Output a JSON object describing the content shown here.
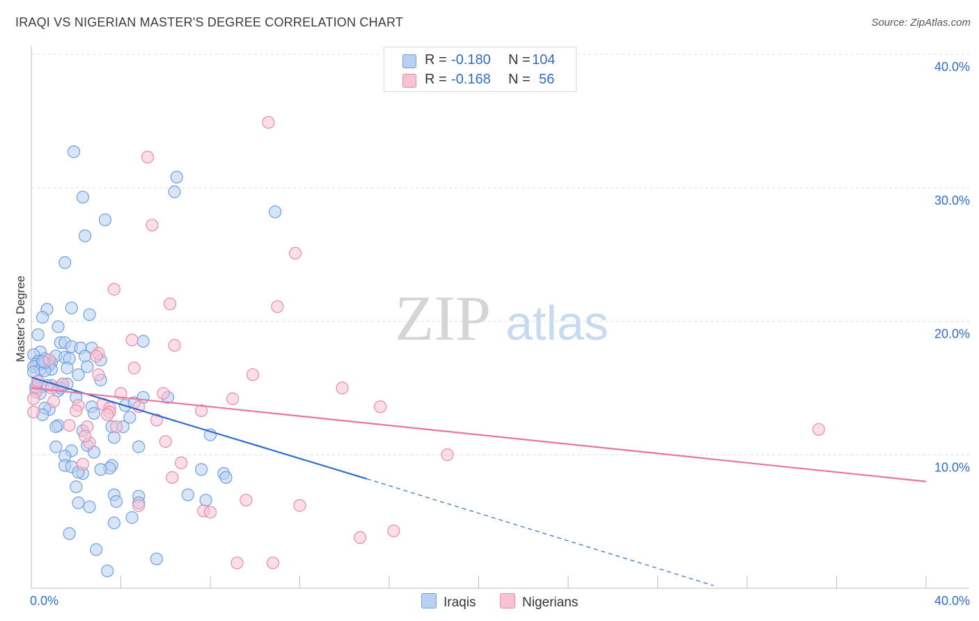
{
  "title": "IRAQI VS NIGERIAN MASTER'S DEGREE CORRELATION CHART",
  "source": "Source: ZipAtlas.com",
  "watermark": {
    "zip": "ZIP",
    "atlas": "atlas"
  },
  "legend": {
    "r_label": "R = ",
    "n_label": "N = ",
    "rows": [
      {
        "name": "Iraqis",
        "r": "-0.180",
        "n": "104",
        "color": "#6d9fe0",
        "fill": "#b8d0f2"
      },
      {
        "name": "Nigerians",
        "r": "-0.168",
        "n": "56",
        "color": "#e98aaa",
        "fill": "#f7c3d4"
      }
    ]
  },
  "chart_data": {
    "type": "scatter",
    "title": "IRAQI VS NIGERIAN MASTER'S DEGREE CORRELATION CHART",
    "xlabel": "",
    "ylabel": "Master's Degree",
    "xlim": [
      0,
      40
    ],
    "ylim": [
      0,
      40
    ],
    "x_tick_labels": [
      "0.0%",
      "40.0%"
    ],
    "y_tick_labels": [
      "10.0%",
      "20.0%",
      "30.0%",
      "40.0%"
    ],
    "y_ticks": [
      10,
      20,
      30,
      40
    ],
    "series": [
      {
        "name": "Iraqis",
        "color": "#6d9fe0",
        "fill": "#b8d0f2",
        "line_color": "#2f6cc8",
        "trend": {
          "x0": 0,
          "y0": 15.8,
          "x1": 15,
          "y1": 8.2,
          "dashed_to_x": 30.5,
          "dashed_to_y": 0.2
        },
        "points": [
          [
            1.9,
            32.7
          ],
          [
            6.5,
            30.8
          ],
          [
            2.3,
            29.3
          ],
          [
            6.4,
            29.7
          ],
          [
            10.9,
            28.2
          ],
          [
            3.3,
            27.6
          ],
          [
            2.4,
            26.4
          ],
          [
            1.5,
            24.4
          ],
          [
            0.7,
            20.9
          ],
          [
            1.8,
            21.0
          ],
          [
            0.5,
            20.3
          ],
          [
            2.6,
            20.5
          ],
          [
            1.2,
            19.6
          ],
          [
            0.3,
            19.0
          ],
          [
            5.0,
            18.5
          ],
          [
            1.3,
            18.4
          ],
          [
            1.5,
            18.4
          ],
          [
            1.8,
            18.1
          ],
          [
            2.2,
            18.0
          ],
          [
            2.7,
            18.0
          ],
          [
            0.4,
            17.7
          ],
          [
            0.1,
            17.5
          ],
          [
            1.1,
            17.4
          ],
          [
            1.5,
            17.3
          ],
          [
            2.4,
            17.4
          ],
          [
            1.7,
            17.2
          ],
          [
            0.6,
            17.2
          ],
          [
            0.3,
            17.0
          ],
          [
            0.9,
            16.9
          ],
          [
            3.1,
            17.1
          ],
          [
            0.2,
            16.8
          ],
          [
            0.5,
            16.8
          ],
          [
            0.8,
            16.7
          ],
          [
            0.1,
            16.6
          ],
          [
            0.4,
            16.4
          ],
          [
            1.6,
            16.5
          ],
          [
            2.5,
            16.6
          ],
          [
            0.9,
            16.4
          ],
          [
            0.6,
            16.3
          ],
          [
            0.1,
            16.2
          ],
          [
            2.1,
            16.0
          ],
          [
            0.3,
            15.5
          ],
          [
            1.4,
            15.3
          ],
          [
            0.9,
            15.2
          ],
          [
            0.5,
            15.1
          ],
          [
            1.6,
            15.3
          ],
          [
            0.2,
            14.9
          ],
          [
            1.2,
            14.8
          ],
          [
            0.4,
            14.6
          ],
          [
            2.0,
            14.3
          ],
          [
            5.0,
            14.3
          ],
          [
            6.1,
            14.3
          ],
          [
            4.2,
            13.7
          ],
          [
            2.7,
            13.6
          ],
          [
            0.8,
            13.4
          ],
          [
            0.6,
            13.5
          ],
          [
            0.5,
            13.0
          ],
          [
            4.4,
            12.8
          ],
          [
            1.2,
            12.2
          ],
          [
            1.1,
            12.1
          ],
          [
            3.6,
            12.1
          ],
          [
            4.1,
            12.1
          ],
          [
            2.3,
            11.8
          ],
          [
            8.0,
            11.5
          ],
          [
            3.7,
            11.3
          ],
          [
            1.1,
            10.6
          ],
          [
            2.5,
            10.7
          ],
          [
            4.8,
            10.6
          ],
          [
            2.8,
            10.2
          ],
          [
            1.8,
            10.3
          ],
          [
            1.5,
            9.9
          ],
          [
            3.6,
            9.2
          ],
          [
            1.5,
            9.2
          ],
          [
            1.8,
            9.1
          ],
          [
            3.5,
            9.0
          ],
          [
            7.6,
            8.9
          ],
          [
            3.1,
            8.9
          ],
          [
            2.3,
            8.6
          ],
          [
            2.1,
            8.7
          ],
          [
            8.6,
            8.6
          ],
          [
            8.7,
            8.3
          ],
          [
            2.0,
            7.6
          ],
          [
            3.7,
            7.0
          ],
          [
            4.8,
            6.9
          ],
          [
            7.0,
            7.0
          ],
          [
            7.8,
            6.6
          ],
          [
            3.8,
            6.5
          ],
          [
            4.8,
            6.4
          ],
          [
            2.1,
            6.4
          ],
          [
            2.6,
            6.1
          ],
          [
            4.5,
            5.3
          ],
          [
            3.7,
            4.9
          ],
          [
            1.7,
            4.1
          ],
          [
            2.9,
            2.9
          ],
          [
            5.6,
            2.2
          ],
          [
            3.4,
            1.3
          ],
          [
            0.6,
            16.9
          ],
          [
            0.7,
            15.2
          ],
          [
            1.3,
            15.0
          ],
          [
            0.2,
            15.1
          ],
          [
            3.1,
            15.6
          ],
          [
            2.8,
            13.1
          ],
          [
            4.6,
            13.9
          ],
          [
            0.5,
            17.0
          ]
        ]
      },
      {
        "name": "Nigerians",
        "color": "#e98aaa",
        "fill": "#f7c3d4",
        "line_color": "#e8749c",
        "trend": {
          "x0": 0,
          "y0": 15.0,
          "x1": 40,
          "y1": 8.0
        },
        "points": [
          [
            10.6,
            34.9
          ],
          [
            5.2,
            32.3
          ],
          [
            5.4,
            27.2
          ],
          [
            11.8,
            25.1
          ],
          [
            3.7,
            22.4
          ],
          [
            6.2,
            21.3
          ],
          [
            11.0,
            21.1
          ],
          [
            4.5,
            18.6
          ],
          [
            6.4,
            18.2
          ],
          [
            0.8,
            17.1
          ],
          [
            3.0,
            17.6
          ],
          [
            2.9,
            17.4
          ],
          [
            4.6,
            16.5
          ],
          [
            9.9,
            16.0
          ],
          [
            3.0,
            16.0
          ],
          [
            0.3,
            15.5
          ],
          [
            1.4,
            15.3
          ],
          [
            0.9,
            15.0
          ],
          [
            13.9,
            15.0
          ],
          [
            0.2,
            14.7
          ],
          [
            4.0,
            14.6
          ],
          [
            5.9,
            14.6
          ],
          [
            0.1,
            14.2
          ],
          [
            9.0,
            14.2
          ],
          [
            3.2,
            13.8
          ],
          [
            2.1,
            13.7
          ],
          [
            3.5,
            13.5
          ],
          [
            4.8,
            13.6
          ],
          [
            15.6,
            13.6
          ],
          [
            7.6,
            13.3
          ],
          [
            2.0,
            13.3
          ],
          [
            3.5,
            13.2
          ],
          [
            3.4,
            13.0
          ],
          [
            0.1,
            13.2
          ],
          [
            5.6,
            12.6
          ],
          [
            1.7,
            12.2
          ],
          [
            2.5,
            12.1
          ],
          [
            3.8,
            12.1
          ],
          [
            35.2,
            11.9
          ],
          [
            6.0,
            11.0
          ],
          [
            2.6,
            10.9
          ],
          [
            18.6,
            10.0
          ],
          [
            6.7,
            9.4
          ],
          [
            2.3,
            9.3
          ],
          [
            6.3,
            8.3
          ],
          [
            9.6,
            6.6
          ],
          [
            12.0,
            6.2
          ],
          [
            4.8,
            6.2
          ],
          [
            7.7,
            5.8
          ],
          [
            8.0,
            5.7
          ],
          [
            16.2,
            4.3
          ],
          [
            14.7,
            3.8
          ],
          [
            9.2,
            1.9
          ],
          [
            10.8,
            1.9
          ],
          [
            1.0,
            14.0
          ],
          [
            2.4,
            11.4
          ]
        ]
      }
    ]
  }
}
